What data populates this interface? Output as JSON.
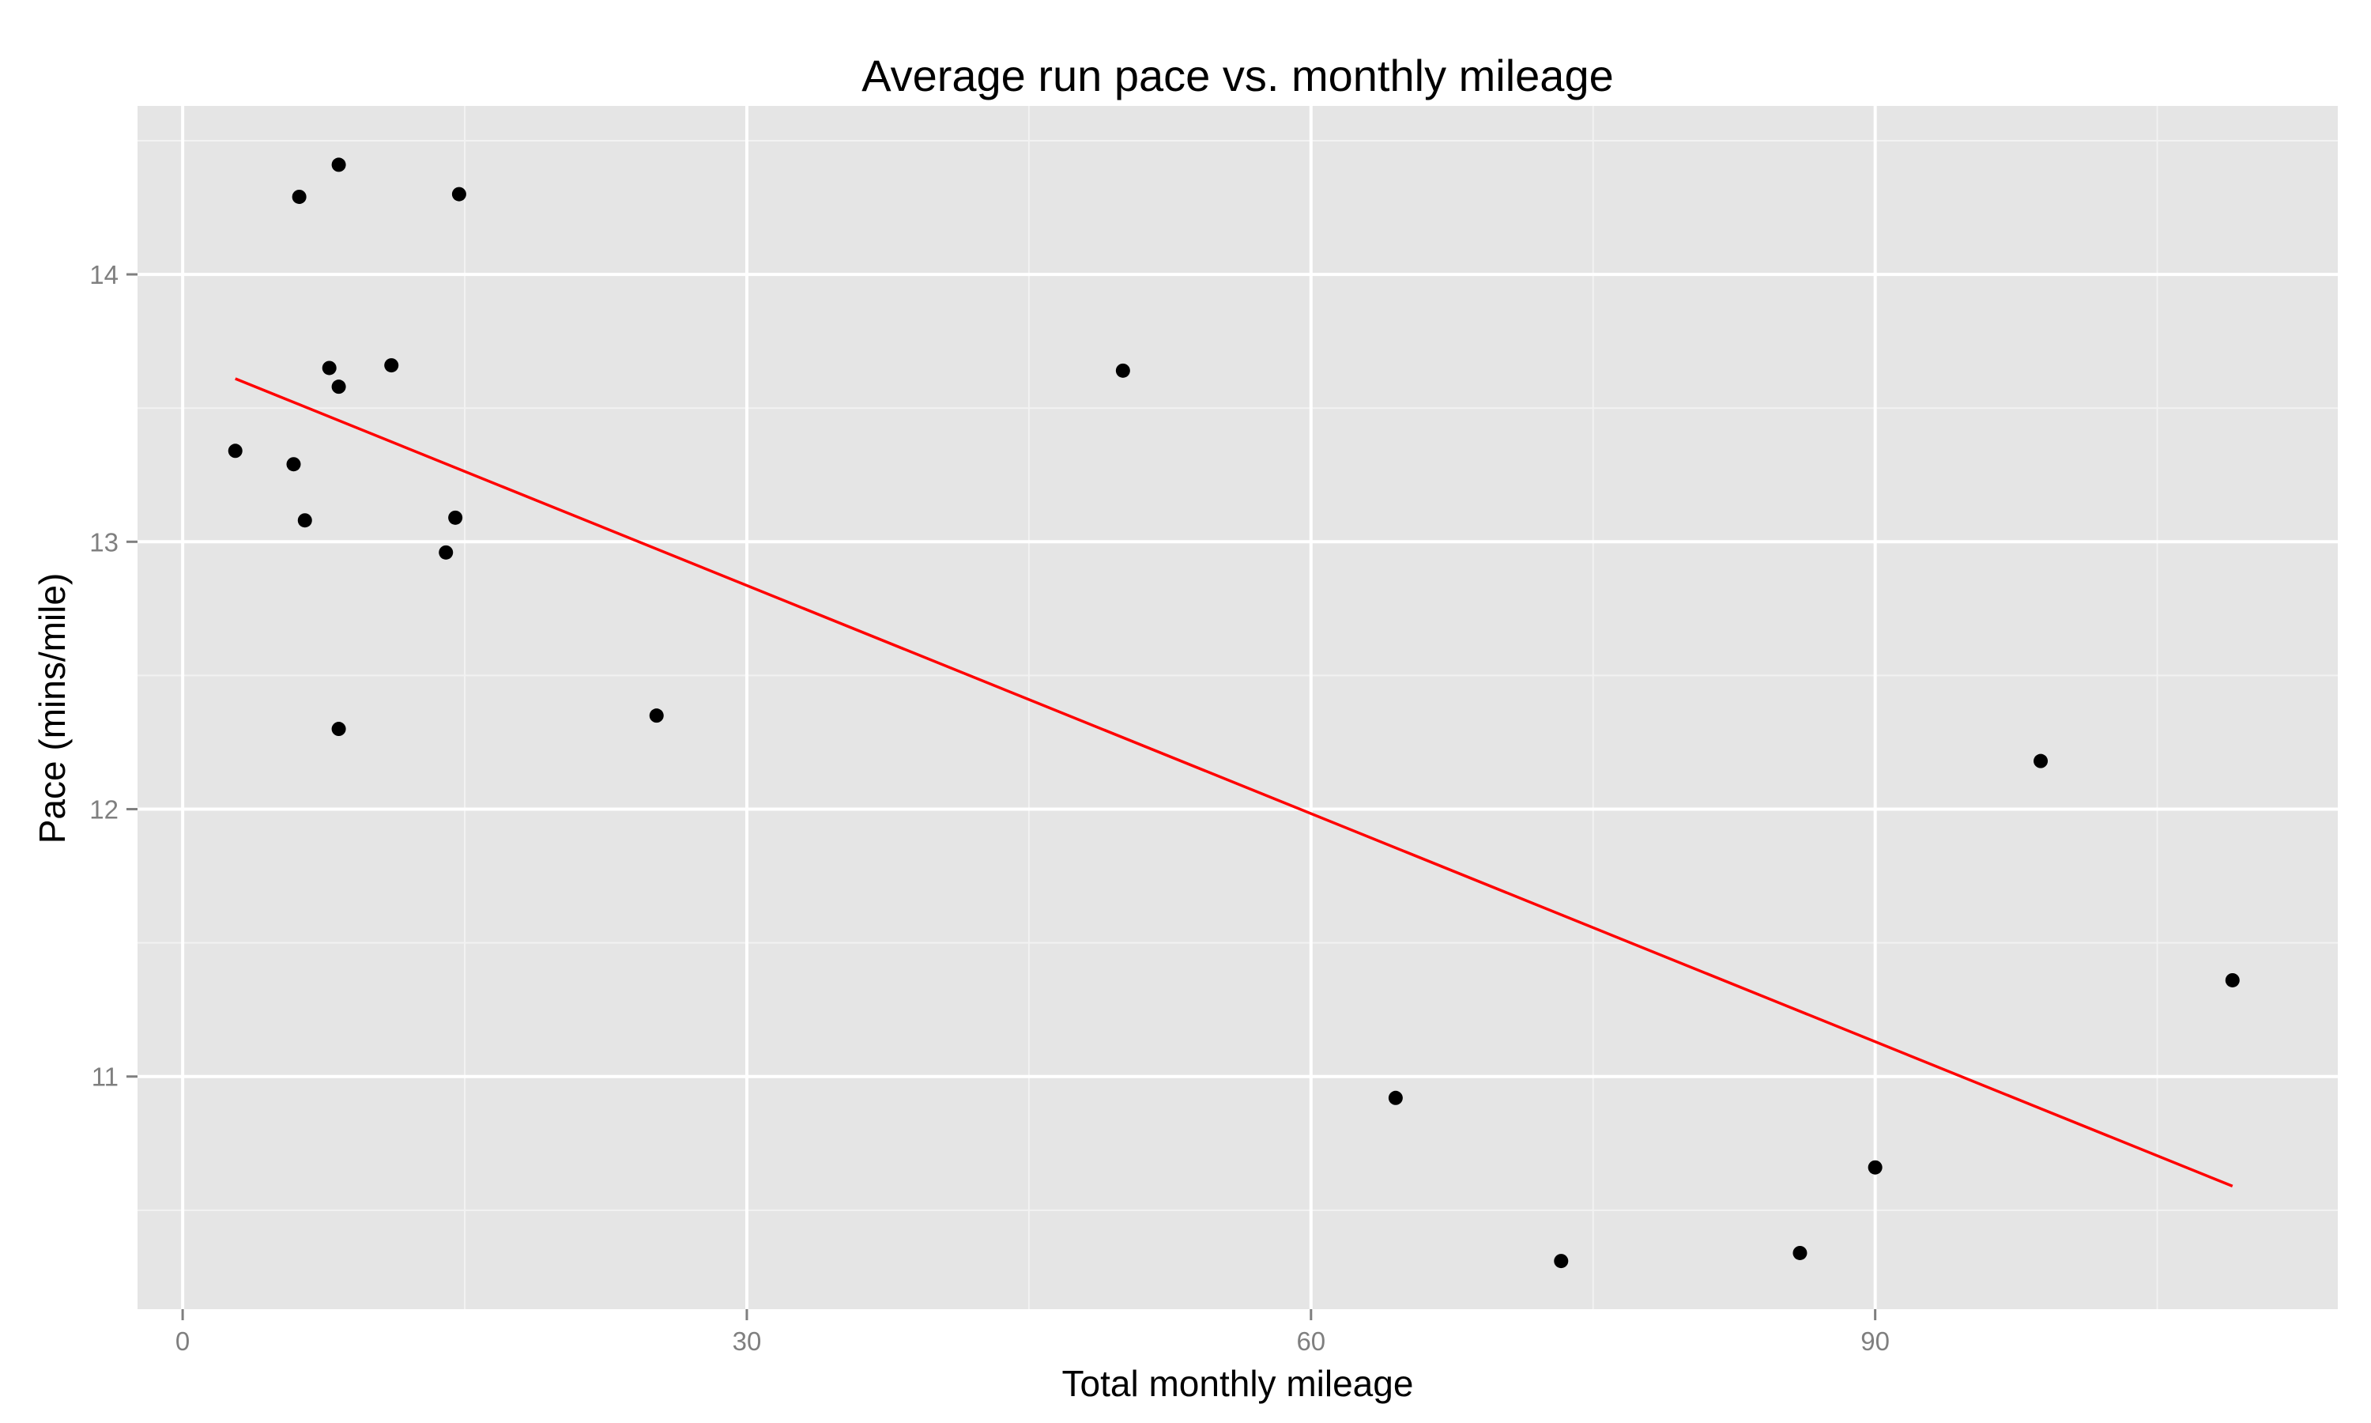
{
  "chart_data": {
    "type": "scatter",
    "title": "Average run pace vs. monthly mileage",
    "xlabel": "Total monthly mileage",
    "ylabel": "Pace (mins/mile)",
    "x_ticks": [
      0,
      30,
      60,
      90
    ],
    "y_ticks": [
      11,
      12,
      13,
      14
    ],
    "xlim": [
      -2.4,
      114.6
    ],
    "ylim": [
      10.13,
      14.63
    ],
    "grid": true,
    "legend": "none",
    "series": [
      {
        "points": [
          {
            "x": 2.8,
            "y": 13.34
          },
          {
            "x": 5.9,
            "y": 13.29
          },
          {
            "x": 6.2,
            "y": 14.29
          },
          {
            "x": 6.5,
            "y": 13.08
          },
          {
            "x": 7.8,
            "y": 13.65
          },
          {
            "x": 8.3,
            "y": 14.41
          },
          {
            "x": 8.3,
            "y": 13.58
          },
          {
            "x": 8.3,
            "y": 12.3
          },
          {
            "x": 11.1,
            "y": 13.66
          },
          {
            "x": 14.0,
            "y": 12.96
          },
          {
            "x": 14.5,
            "y": 13.09
          },
          {
            "x": 14.7,
            "y": 14.3
          },
          {
            "x": 25.2,
            "y": 12.35
          },
          {
            "x": 50.0,
            "y": 13.64
          },
          {
            "x": 64.5,
            "y": 10.92
          },
          {
            "x": 73.3,
            "y": 10.31
          },
          {
            "x": 86.0,
            "y": 10.34
          },
          {
            "x": 90.0,
            "y": 10.66
          },
          {
            "x": 98.8,
            "y": 12.18
          },
          {
            "x": 109.0,
            "y": 11.36
          }
        ]
      }
    ],
    "trend_line": {
      "x": [
        2.8,
        109.0
      ],
      "y": [
        13.61,
        10.59
      ]
    },
    "colors": {
      "panel_background": "#e5e5e5",
      "major_grid": "#ffffff",
      "minor_grid": "#f2f2f2",
      "point": "#000000",
      "trend_line": "#ff0000",
      "tick_text": "#7f7f7f",
      "tick_mark": "#7f7f7f"
    }
  }
}
